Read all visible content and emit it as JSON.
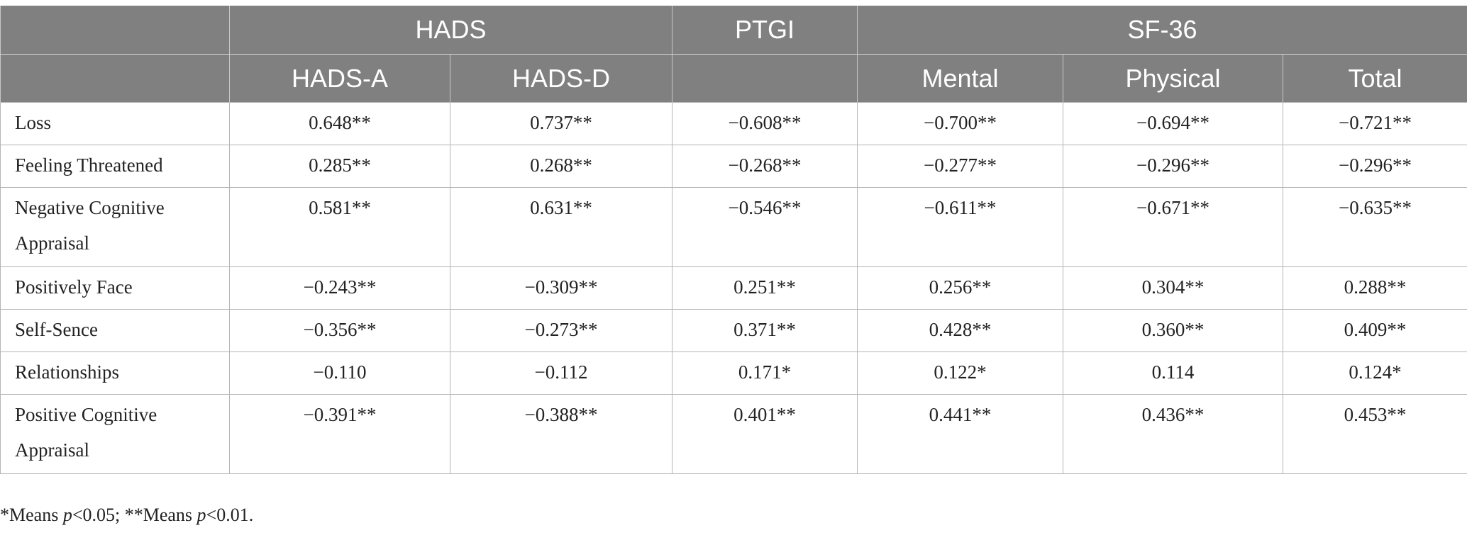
{
  "table": {
    "group_headers": [
      {
        "label": "",
        "span": 1
      },
      {
        "label": "HADS",
        "span": 2
      },
      {
        "label": "PTGI",
        "span": 1
      },
      {
        "label": "SF-36",
        "span": 3
      }
    ],
    "sub_headers": [
      "",
      "HADS-A",
      "HADS-D",
      "",
      "Mental",
      "Physical",
      "Total"
    ],
    "rows": [
      {
        "label": "Loss",
        "cells": [
          "0.648**",
          "0.737**",
          "−0.608**",
          "−0.700**",
          "−0.694**",
          "−0.721**"
        ]
      },
      {
        "label": "Feeling Threatened",
        "cells": [
          "0.285**",
          "0.268**",
          "−0.268**",
          "−0.277**",
          "−0.296**",
          "−0.296**"
        ]
      },
      {
        "label": "Negative Cognitive Appraisal",
        "label_line1": "Negative Cognitive",
        "label_line2": "Appraisal",
        "cells": [
          "0.581**",
          "0.631**",
          "−0.546**",
          "−0.611**",
          "−0.671**",
          "−0.635**"
        ]
      },
      {
        "label": "Positively Face",
        "cells": [
          "−0.243**",
          "−0.309**",
          "0.251**",
          "0.256**",
          "0.304**",
          "0.288**"
        ]
      },
      {
        "label": "Self-Sence",
        "cells": [
          "−0.356**",
          "−0.273**",
          "0.371**",
          "0.428**",
          "0.360**",
          "0.409**"
        ]
      },
      {
        "label": "Relationships",
        "cells": [
          "−0.110",
          "−0.112",
          "0.171*",
          "0.122*",
          "0.114",
          "0.124*"
        ]
      },
      {
        "label": "Positive Cognitive Appraisal",
        "label_line1": "Positive Cognitive",
        "label_line2": "Appraisal",
        "cells": [
          "−0.391**",
          "−0.388**",
          "0.401**",
          "0.441**",
          "0.436**",
          "0.453**"
        ]
      }
    ]
  },
  "footnote": {
    "part1": "*Means ",
    "p1": "p",
    "part2": "<0.05; **Means ",
    "p2": "p",
    "part3": "<0.01."
  }
}
